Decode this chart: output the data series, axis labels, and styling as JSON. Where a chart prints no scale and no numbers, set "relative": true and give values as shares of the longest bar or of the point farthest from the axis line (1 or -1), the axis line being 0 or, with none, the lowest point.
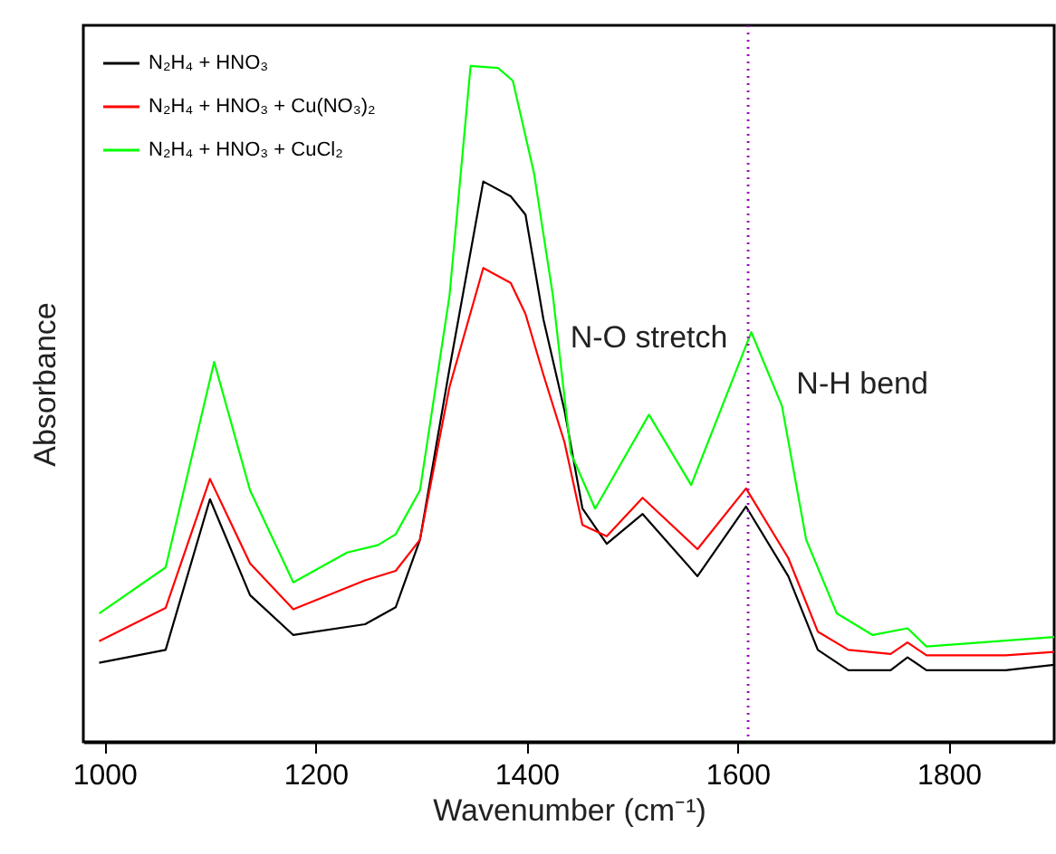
{
  "chart_data": {
    "type": "line",
    "relative": true,
    "xlabel": "Wavenumber (cm⁻¹)",
    "ylabel": "Absorbance",
    "xlim": [
      980,
      1900
    ],
    "xticks": [
      1000,
      1200,
      1400,
      1600,
      1800
    ],
    "grid": false,
    "legend": "top left",
    "marker": "none",
    "line_style": "solid",
    "x": [
      995,
      1058,
      1100,
      1138,
      1179,
      1247,
      1276,
      1299,
      1327,
      1359,
      1385,
      1399,
      1416,
      1436,
      1453,
      1476,
      1510,
      1562,
      1608,
      1648,
      1676,
      1705,
      1745,
      1761,
      1779,
      1854,
      1900
    ],
    "series": [
      {
        "name": "N₂H₄ + HNO₃",
        "color": "#000000",
        "values": [
          0.117,
          0.136,
          0.359,
          0.217,
          0.158,
          0.174,
          0.199,
          0.299,
          0.552,
          0.829,
          0.807,
          0.78,
          0.625,
          0.49,
          0.345,
          0.293,
          0.337,
          0.245,
          0.348,
          0.245,
          0.136,
          0.106,
          0.106,
          0.125,
          0.106,
          0.106,
          0.114
        ]
      },
      {
        "name": "N₂H₄ + HNO₃ + Cu(NO₃)₂",
        "color": "#ff0000",
        "values": [
          0.149,
          0.198,
          0.389,
          0.264,
          0.196,
          0.239,
          0.253,
          0.299,
          0.525,
          0.701,
          0.679,
          0.633,
          0.543,
          0.443,
          0.321,
          0.304,
          0.361,
          0.285,
          0.375,
          0.272,
          0.163,
          0.136,
          0.13,
          0.147,
          0.128,
          0.128,
          0.133
        ]
      },
      {
        "name": "N₂H₄ + HNO₃ + CuCl₂",
        "color": "#00ff00",
        "x": [
          995,
          1058,
          1104,
          1138,
          1179,
          1230,
          1259,
          1276,
          1299,
          1327,
          1347,
          1373,
          1387,
          1407,
          1425,
          1442,
          1465,
          1516,
          1556,
          1613,
          1642,
          1665,
          1694,
          1728,
          1761,
          1779,
          1900
        ],
        "values": [
          0.19,
          0.258,
          0.562,
          0.372,
          0.236,
          0.28,
          0.291,
          0.307,
          0.372,
          0.66,
          1.0,
          0.997,
          0.978,
          0.842,
          0.66,
          0.427,
          0.345,
          0.484,
          0.38,
          0.606,
          0.497,
          0.299,
          0.19,
          0.158,
          0.168,
          0.141,
          0.155
        ]
      }
    ],
    "ref_lines": [
      {
        "axis": "x",
        "value": 1610,
        "color": "#a000c0",
        "line_style": "dotted"
      }
    ],
    "annotations": [
      {
        "text": "N-O stretch",
        "x": 1516,
        "y": 0.484
      },
      {
        "text": "N-H bend",
        "x": 1642,
        "y": 0.497
      }
    ]
  }
}
